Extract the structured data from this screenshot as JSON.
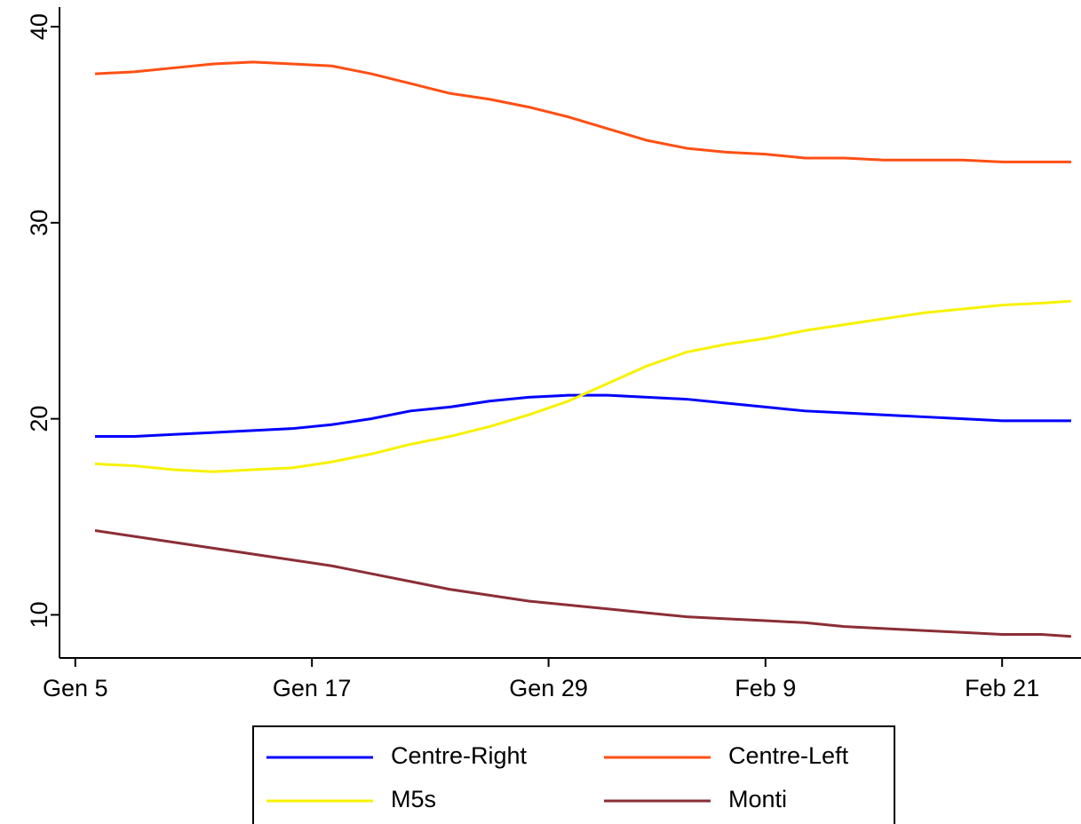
{
  "chart_data": {
    "type": "line",
    "x": [
      6,
      8,
      10,
      12,
      14,
      16,
      18,
      20,
      22,
      24,
      26,
      28,
      30,
      32,
      34,
      36,
      38,
      40,
      42,
      44,
      46,
      48,
      50,
      52,
      54,
      55.5
    ],
    "series": [
      {
        "name": "Centre-Right",
        "color": "#0000ff",
        "values": [
          19.1,
          19.1,
          19.2,
          19.3,
          19.4,
          19.5,
          19.7,
          20.0,
          20.4,
          20.6,
          20.9,
          21.1,
          21.2,
          21.2,
          21.1,
          21.0,
          20.8,
          20.6,
          20.4,
          20.3,
          20.2,
          20.1,
          20.0,
          19.9,
          19.9,
          19.9
        ]
      },
      {
        "name": "Centre-Left",
        "color": "#ff4f14",
        "values": [
          37.6,
          37.7,
          37.9,
          38.1,
          38.2,
          38.1,
          38.0,
          37.6,
          37.1,
          36.6,
          36.3,
          35.9,
          35.4,
          34.8,
          34.2,
          33.8,
          33.6,
          33.5,
          33.3,
          33.3,
          33.2,
          33.2,
          33.2,
          33.1,
          33.1,
          33.1
        ]
      },
      {
        "name": "M5s",
        "color": "#f7f200",
        "values": [
          17.7,
          17.6,
          17.4,
          17.3,
          17.4,
          17.5,
          17.8,
          18.2,
          18.7,
          19.1,
          19.6,
          20.2,
          20.9,
          21.8,
          22.7,
          23.4,
          23.8,
          24.1,
          24.5,
          24.8,
          25.1,
          25.4,
          25.6,
          25.8,
          25.9,
          26.0
        ]
      },
      {
        "name": "Monti",
        "color": "#8b2e36",
        "values": [
          14.3,
          14.0,
          13.7,
          13.4,
          13.1,
          12.8,
          12.5,
          12.1,
          11.7,
          11.3,
          11.0,
          10.7,
          10.5,
          10.3,
          10.1,
          9.9,
          9.8,
          9.7,
          9.6,
          9.4,
          9.3,
          9.2,
          9.1,
          9.0,
          9.0,
          8.9
        ]
      }
    ],
    "xlim": [
      4.2,
      56.0
    ],
    "xticks": [
      {
        "value": 5,
        "label": "Gen 5"
      },
      {
        "value": 17,
        "label": "Gen 17"
      },
      {
        "value": 29,
        "label": "Gen 29"
      },
      {
        "value": 40,
        "label": "Feb 9"
      },
      {
        "value": 52,
        "label": "Feb 21"
      }
    ],
    "ylim": [
      7.8,
      41.0
    ],
    "yticks": [
      10,
      20,
      30,
      40
    ],
    "grid": false,
    "legend": "bottom"
  }
}
